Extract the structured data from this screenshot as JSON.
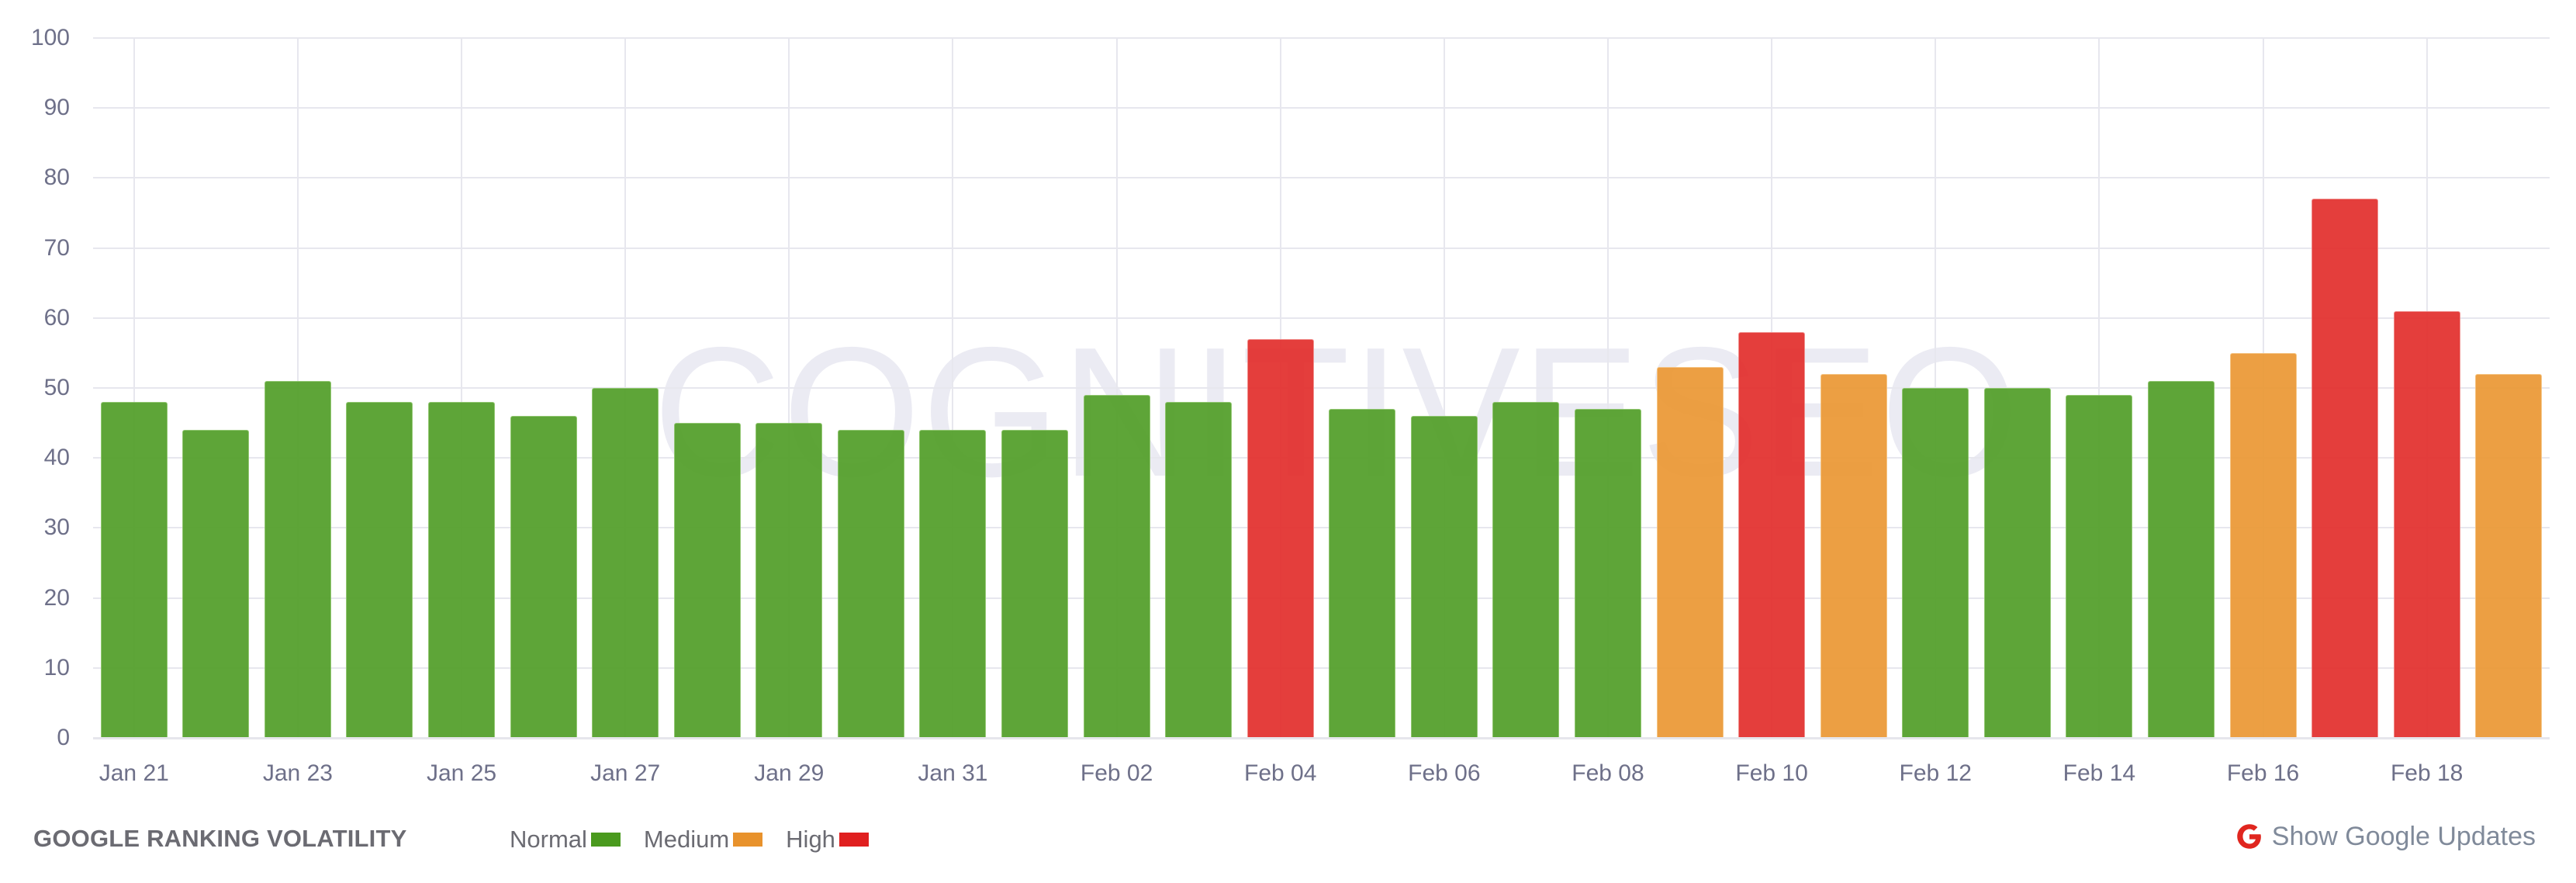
{
  "chart_data": {
    "type": "bar",
    "title": "GOOGLE RANKING VOLATILITY",
    "xlabel": "",
    "ylabel": "",
    "ylim": [
      0,
      100
    ],
    "yticks": [
      0,
      10,
      20,
      30,
      40,
      50,
      60,
      70,
      80,
      90,
      100
    ],
    "grid": true,
    "legend_position": "bottom",
    "categories": [
      "Jan 21",
      "Jan 22",
      "Jan 23",
      "Jan 24",
      "Jan 25",
      "Jan 26",
      "Jan 27",
      "Jan 28",
      "Jan 29",
      "Jan 30",
      "Jan 31",
      "Feb 01",
      "Feb 02",
      "Feb 03",
      "Feb 04",
      "Feb 05",
      "Feb 06",
      "Feb 07",
      "Feb 08",
      "Feb 09",
      "Feb 10",
      "Feb 11",
      "Feb 12",
      "Feb 13",
      "Feb 14",
      "Feb 15",
      "Feb 16",
      "Feb 17",
      "Feb 18",
      "Feb 19"
    ],
    "values": [
      48,
      44,
      51,
      48,
      48,
      46,
      50,
      45,
      45,
      44,
      44,
      44,
      49,
      48,
      57,
      47,
      46,
      48,
      47,
      53,
      58,
      52,
      50,
      50,
      49,
      51,
      55,
      77,
      61,
      52
    ],
    "levels": [
      "normal",
      "normal",
      "normal",
      "normal",
      "normal",
      "normal",
      "normal",
      "normal",
      "normal",
      "normal",
      "normal",
      "normal",
      "normal",
      "normal",
      "high",
      "normal",
      "normal",
      "normal",
      "normal",
      "medium",
      "high",
      "medium",
      "normal",
      "normal",
      "normal",
      "normal",
      "medium",
      "high",
      "high",
      "medium"
    ],
    "xtick_labels": [
      {
        "index": 0,
        "label": "Jan 21"
      },
      {
        "index": 2,
        "label": "Jan 23"
      },
      {
        "index": 4,
        "label": "Jan 25"
      },
      {
        "index": 6,
        "label": "Jan 27"
      },
      {
        "index": 8,
        "label": "Jan 29"
      },
      {
        "index": 10,
        "label": "Jan 31"
      },
      {
        "index": 12,
        "label": "Feb 02"
      },
      {
        "index": 14,
        "label": "Feb 04"
      },
      {
        "index": 16,
        "label": "Feb 06"
      },
      {
        "index": 18,
        "label": "Feb 08"
      },
      {
        "index": 20,
        "label": "Feb 10"
      },
      {
        "index": 22,
        "label": "Feb 12"
      },
      {
        "index": 24,
        "label": "Feb 14"
      },
      {
        "index": 26,
        "label": "Feb 16"
      },
      {
        "index": 28,
        "label": "Feb 18"
      }
    ],
    "legend": [
      {
        "key": "normal",
        "label": "Normal",
        "color": "#4a9a1e"
      },
      {
        "key": "medium",
        "label": "Medium",
        "color": "#e8922c"
      },
      {
        "key": "high",
        "label": "High",
        "color": "#e01f1f"
      }
    ]
  },
  "watermark": "COGNITIVESEO",
  "footer": {
    "title": "GOOGLE RANKING VOLATILITY",
    "show_updates_label": "Show Google Updates",
    "google_icon_color": "#e0261f"
  },
  "colors": {
    "bar_normal": "#55a02c",
    "bar_medium": "#eb9a38",
    "bar_high": "#e33230",
    "axis_text": "#6e7089",
    "grid": "#e7e7ee"
  }
}
